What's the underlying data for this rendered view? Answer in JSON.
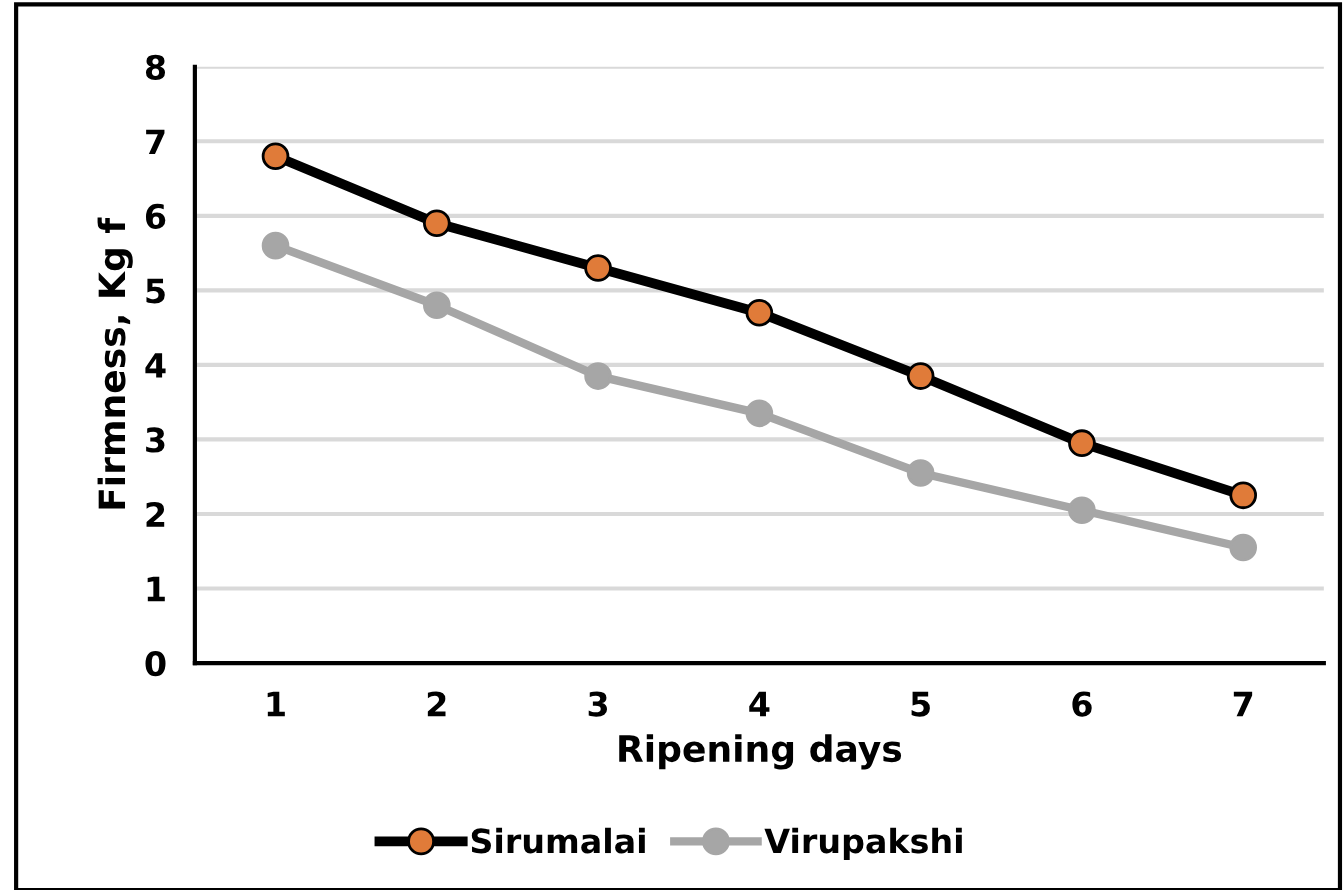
{
  "chart_data": {
    "type": "line",
    "xlabel": "Ripening days",
    "ylabel": "Firmness, Kg f",
    "categories": [
      "1",
      "2",
      "3",
      "4",
      "5",
      "6",
      "7"
    ],
    "series": [
      {
        "name": "Sirumalai",
        "color": "#000000",
        "colors": [
          "#e07b39",
          "#e07b39",
          "#e07b39",
          "#e07b39",
          "#e07b39",
          "#e07b39",
          "#e07b39"
        ],
        "values": [
          6.8,
          5.9,
          5.3,
          4.7,
          3.85,
          2.95,
          2.25
        ]
      },
      {
        "name": "Virupakshi",
        "color": "#a6a6a6",
        "values": [
          5.6,
          4.8,
          3.85,
          3.35,
          2.55,
          2.05,
          1.55
        ]
      }
    ],
    "ylim": [
      0,
      8
    ],
    "yticks": [
      0,
      1,
      2,
      3,
      4,
      5,
      6,
      7,
      8
    ],
    "grid": "y",
    "legend": "bottom",
    "marker": "circle",
    "line_style": "solid"
  }
}
